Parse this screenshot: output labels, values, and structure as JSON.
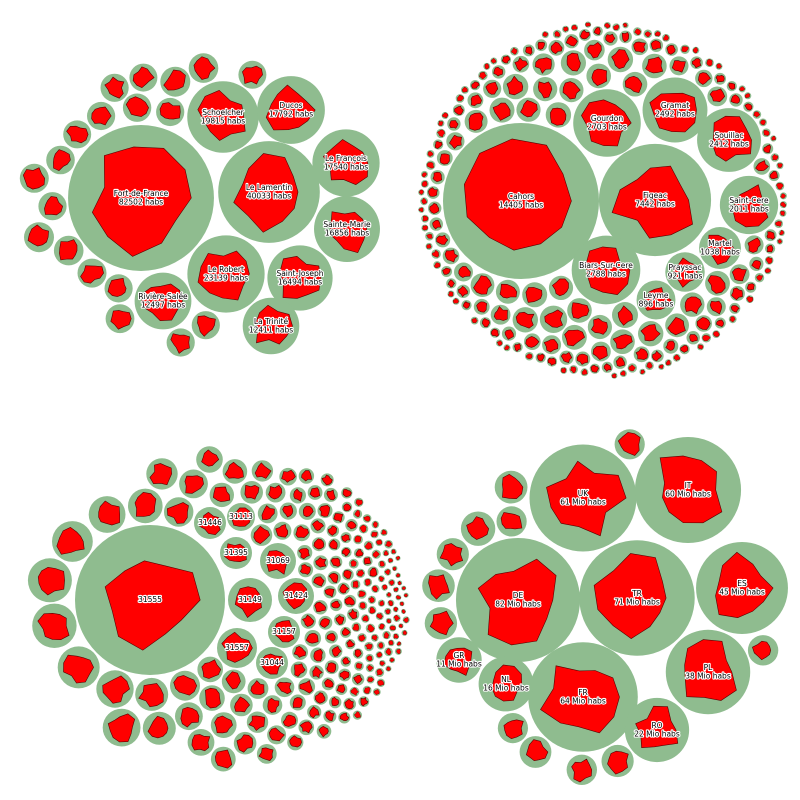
{
  "chart_data": [
    {
      "type": "pack",
      "color": "#8fbc8f",
      "shape_color": "#ff0000",
      "categories": [
        "Fort-de-France",
        "Schoelcher",
        "Ducos",
        "Le Lamentin",
        "Le François",
        "Sainte-Marie",
        "Le Robert",
        "Saint-Joseph",
        "Rivière-Salée",
        "La Trinité"
      ],
      "values": [
        82502,
        19815,
        17792,
        40033,
        17540,
        16856,
        23139,
        16494,
        12497,
        12411
      ],
      "value_labels": [
        "82502 habs",
        "19815 habs",
        "17792 habs",
        "40033 habs",
        "17540 habs",
        "16856 habs",
        "23139 habs",
        "16494 habs",
        "12497 habs",
        "12411 habs"
      ]
    },
    {
      "type": "pack",
      "color": "#8fbc8f",
      "shape_color": "#ff0000",
      "categories": [
        "Cahors",
        "Figeac",
        "Gourdon",
        "Gramat",
        "Souillac",
        "Saint-Cere",
        "Martel",
        "Biars-Sur-Cere",
        "Prayssac",
        "Leyme"
      ],
      "values": [
        14405,
        7442,
        2703,
        2492,
        2412,
        2011,
        1038,
        2788,
        921,
        896
      ],
      "value_labels": [
        "14405 habs",
        "7442 habs",
        "2703 habs",
        "2492 habs",
        "2412 habs",
        "2011 habs",
        "1038 habs",
        "2788 habs",
        "921 habs",
        "896 habs"
      ]
    },
    {
      "type": "pack",
      "color": "#8fbc8f",
      "shape_color": "#ff0000",
      "categories": [
        "31555",
        "31446",
        "31113",
        "31395",
        "31069",
        "31149",
        "31424",
        "31157",
        "31557",
        "31044"
      ]
    },
    {
      "type": "pack",
      "color": "#8fbc8f",
      "shape_color": "#ff0000",
      "categories": [
        "UK",
        "IT",
        "DE",
        "TR",
        "ES",
        "FR",
        "PL",
        "RO",
        "NL",
        "GR"
      ],
      "values": [
        61,
        60,
        82,
        71,
        45,
        64,
        38,
        22,
        16,
        11
      ],
      "value_labels": [
        "61 Mio habs",
        "60 Mio habs",
        "82 Mio habs",
        "71 Mio habs",
        "45 Mio habs",
        "64 Mio habs",
        "38 Mio habs",
        "22 Mio habs",
        "16 Mio habs",
        "11 Mio habs"
      ]
    }
  ]
}
